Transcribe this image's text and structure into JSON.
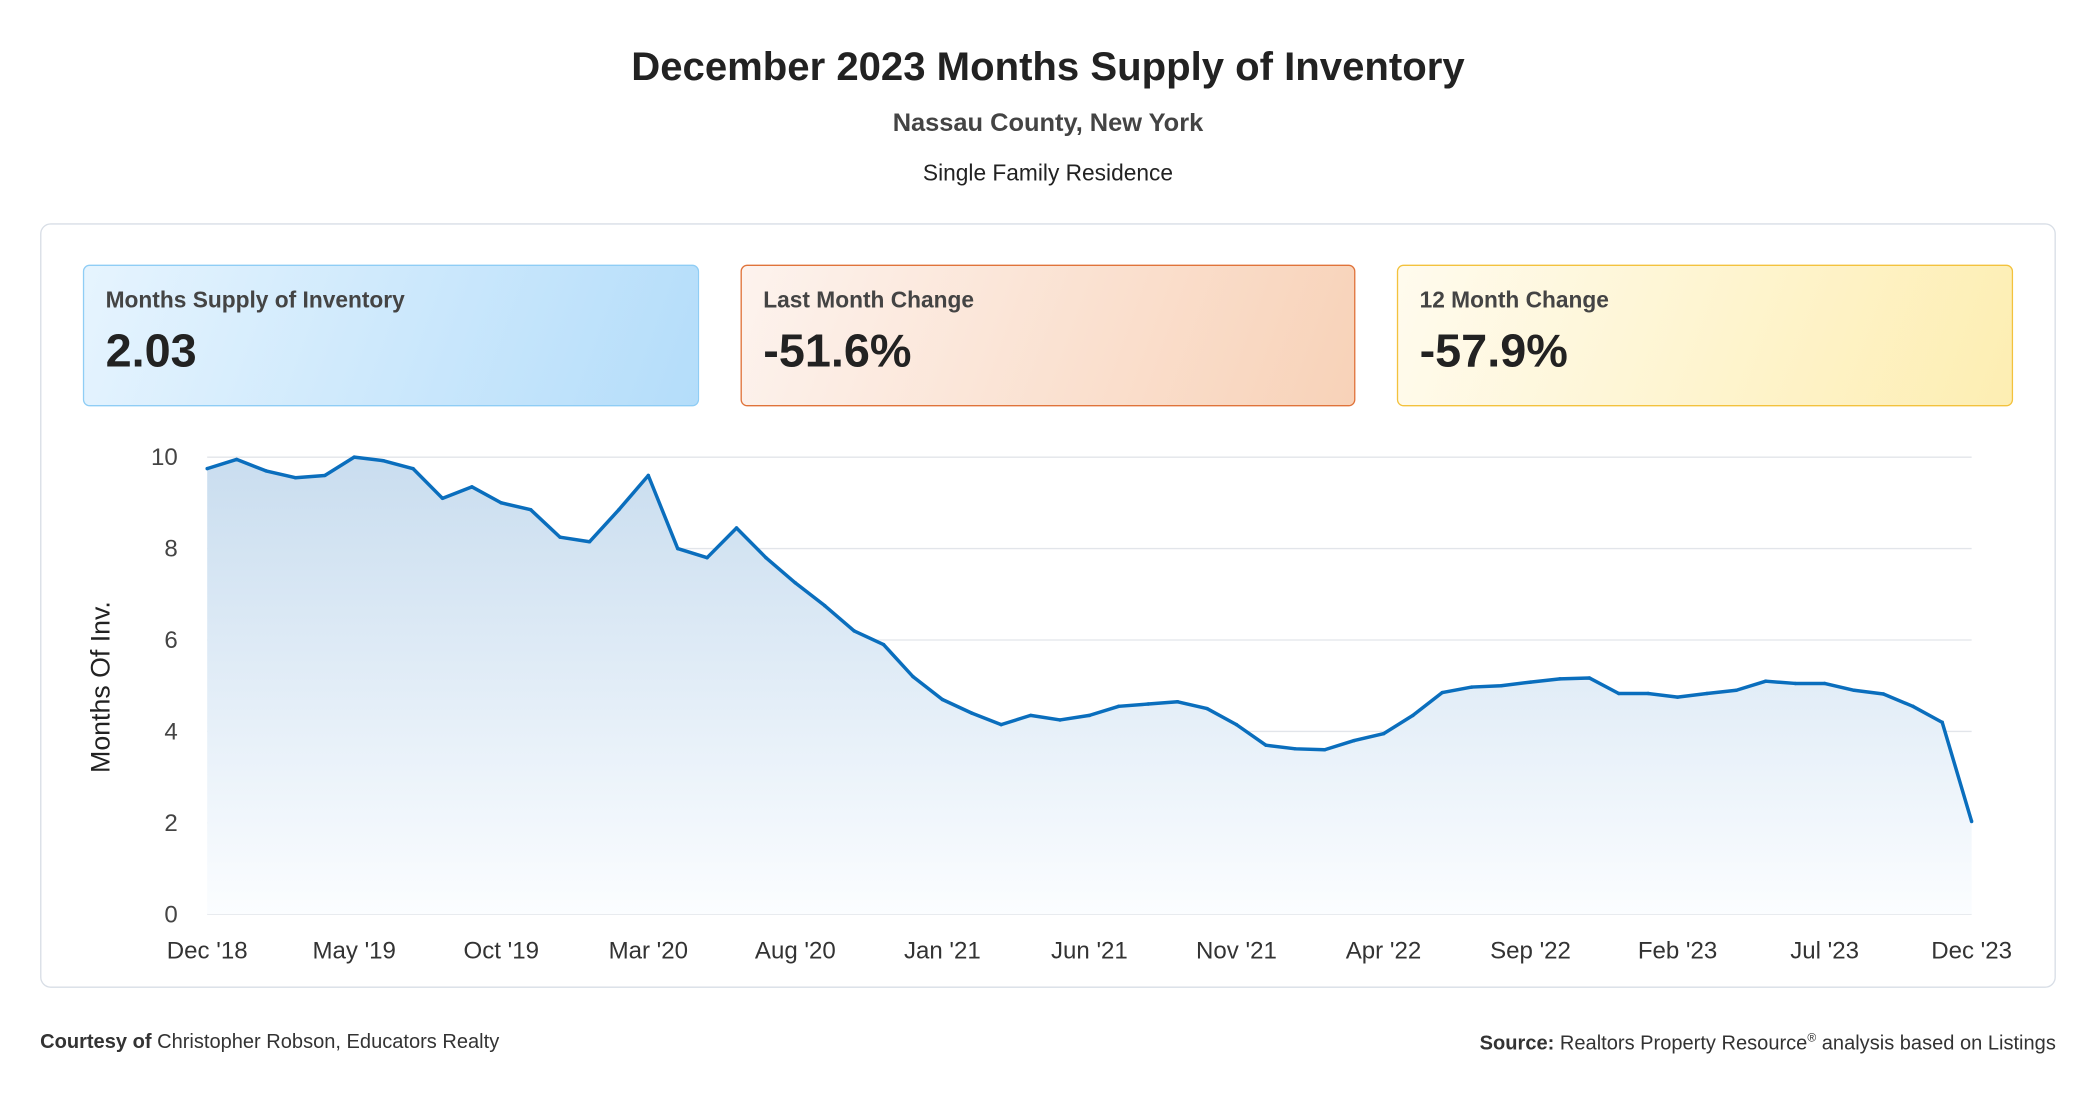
{
  "header": {
    "title": "December 2023 Months Supply of Inventory",
    "subtitle": "Nassau County, New York",
    "property_type": "Single Family Residence"
  },
  "cards": [
    {
      "label": "Months Supply of Inventory",
      "value": "2.03",
      "color": "#b4ddfa"
    },
    {
      "label": "Last Month Change",
      "value": "-51.6%",
      "color": "#f8d2b8"
    },
    {
      "label": "12 Month Change",
      "value": "-57.9%",
      "color": "#fdeeb2"
    }
  ],
  "footer": {
    "courtesy_label": "Courtesy of",
    "courtesy_text": "Christopher Robson, Educators Realty",
    "source_label": "Source:",
    "source_text": "Realtors Property Resource",
    "source_mark": "®",
    "source_suffix": "analysis based on Listings"
  },
  "chart_data": {
    "type": "area",
    "title": "",
    "xlabel": "",
    "ylabel": "Months Of Inv.",
    "ylim": [
      0,
      10
    ],
    "yticks": [
      0,
      2,
      4,
      6,
      8,
      10
    ],
    "grid": true,
    "line_color": "#0a6ebd",
    "xtick_labels": [
      "Dec '18",
      "May '19",
      "Oct '19",
      "Mar '20",
      "Aug '20",
      "Jan '21",
      "Jun '21",
      "Nov '21",
      "Apr '22",
      "Sep '22",
      "Feb '23",
      "Jul '23",
      "Dec '23"
    ],
    "x_start": "Dec 2018",
    "x_end": "Dec 2023",
    "x_interval": "monthly",
    "values": [
      9.75,
      9.95,
      9.7,
      9.55,
      9.6,
      10.0,
      9.92,
      9.75,
      9.1,
      9.35,
      9.0,
      8.85,
      8.25,
      8.15,
      8.85,
      9.6,
      8.0,
      7.8,
      8.45,
      7.8,
      7.25,
      6.75,
      6.2,
      5.9,
      5.2,
      4.7,
      4.4,
      4.15,
      4.35,
      4.25,
      4.35,
      4.55,
      4.6,
      4.65,
      4.5,
      4.15,
      3.7,
      3.62,
      3.6,
      3.8,
      3.95,
      4.35,
      4.85,
      4.97,
      5.0,
      5.08,
      5.15,
      5.17,
      4.83,
      4.83,
      4.75,
      4.83,
      4.9,
      5.1,
      5.05,
      5.05,
      4.9,
      4.82,
      4.55,
      4.2,
      2.03
    ]
  }
}
